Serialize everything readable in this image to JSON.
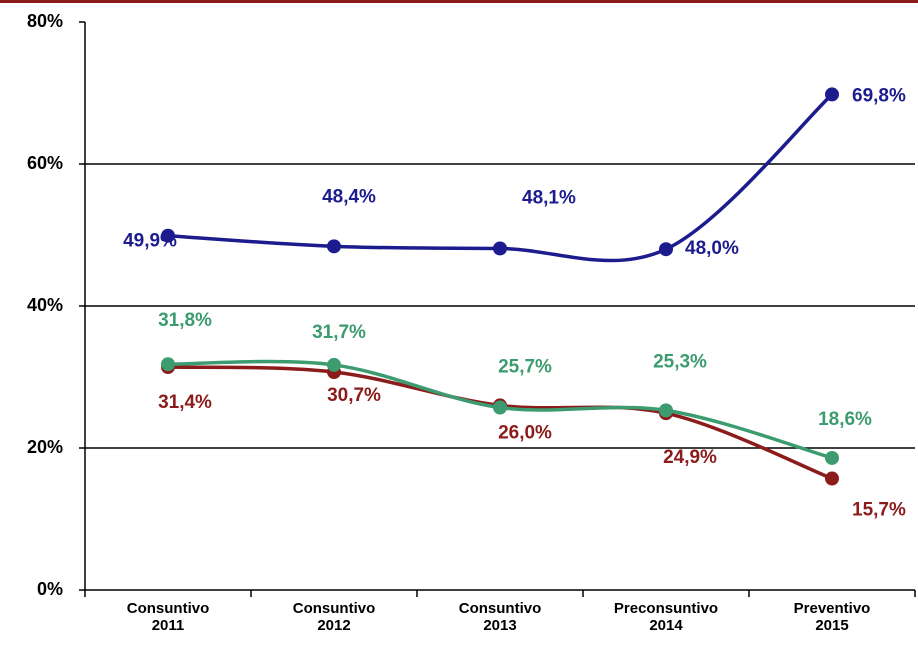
{
  "chart_data": {
    "type": "line",
    "categories": [
      [
        "Consuntivo",
        "2011"
      ],
      [
        "Consuntivo",
        "2012"
      ],
      [
        "Consuntivo",
        "2013"
      ],
      [
        "Preconsuntivo",
        "2014"
      ],
      [
        "Preventivo",
        "2015"
      ]
    ],
    "series": [
      {
        "color": "#1c1c8e",
        "values": [
          49.9,
          48.4,
          48.1,
          48.0,
          69.8
        ],
        "value_labels": [
          "49,9%",
          "48,4%",
          "48,1%",
          "48,0%",
          "69,8%"
        ]
      },
      {
        "color": "#3c9b6f",
        "values": [
          31.8,
          31.7,
          25.7,
          25.3,
          18.6
        ],
        "value_labels": [
          "31,8%",
          "31,7%",
          "25,7%",
          "25,3%",
          "18,6%"
        ]
      },
      {
        "color": "#8c1b1b",
        "values": [
          31.4,
          30.7,
          26.0,
          24.9,
          15.7
        ],
        "value_labels": [
          "31,4%",
          "30,7%",
          "26,0%",
          "24,9%",
          "15,7%"
        ]
      }
    ],
    "ylim": [
      0,
      80
    ],
    "yticks": [
      {
        "value": 0,
        "label": "0%"
      },
      {
        "value": 20,
        "label": "20%"
      },
      {
        "value": 40,
        "label": "40%"
      },
      {
        "value": 60,
        "label": "60%"
      },
      {
        "value": 80,
        "label": "80%"
      }
    ],
    "grid": true
  }
}
